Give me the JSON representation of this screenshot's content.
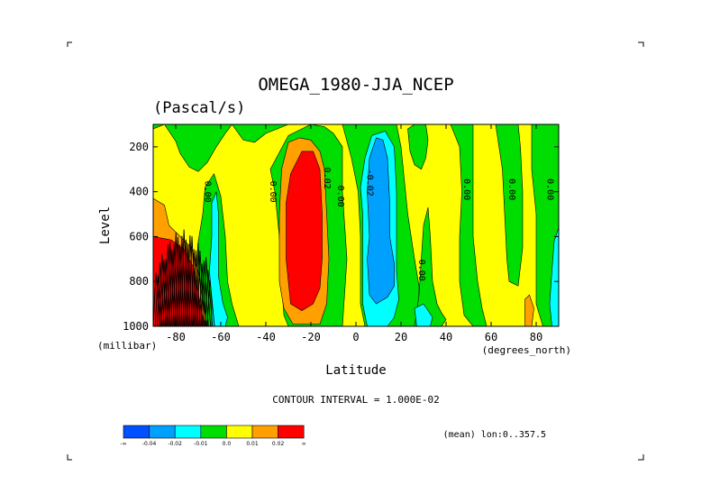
{
  "chart_data": {
    "type": "heatmap",
    "title": "OMEGA_1980-JJA_NCEP",
    "units": "(Pascal/s)",
    "xlabel": "Latitude",
    "ylabel": "Level",
    "x_units": "(degrees_north)",
    "y_units": "(millibar)",
    "xlim": [
      -90,
      90
    ],
    "ylim": [
      1000,
      100
    ],
    "x_ticks": [
      -80,
      -60,
      -40,
      -20,
      0,
      20,
      40,
      60,
      80
    ],
    "y_ticks": [
      200,
      400,
      600,
      800,
      1000
    ],
    "contour_interval_text": "CONTOUR INTERVAL = 1.000E-02",
    "mean_text": "(mean) lon:0..357.5",
    "contour_labels": [
      {
        "lat": -67,
        "level": 400,
        "text": "0.00"
      },
      {
        "lat": -38,
        "level": 400,
        "text": "0.00"
      },
      {
        "lat": -14,
        "level": 340,
        "text": "0.02"
      },
      {
        "lat": -8,
        "level": 420,
        "text": "0.00"
      },
      {
        "lat": 5,
        "level": 360,
        "text": "-0.02"
      },
      {
        "lat": 28,
        "level": 750,
        "text": "0.00"
      },
      {
        "lat": 48,
        "level": 390,
        "text": "0.00"
      },
      {
        "lat": 68,
        "level": 390,
        "text": "0.00"
      },
      {
        "lat": 85,
        "level": 390,
        "text": "0.00"
      }
    ],
    "regions": [
      {
        "fill": "orange",
        "poly": [
          [
            -90,
            430
          ],
          [
            -85,
            460
          ],
          [
            -83,
            550
          ],
          [
            -78,
            600
          ],
          [
            -73,
            650
          ],
          [
            -70,
            760
          ],
          [
            -68,
            880
          ],
          [
            -66,
            1000
          ],
          [
            -90,
            1000
          ]
        ]
      },
      {
        "fill": "red",
        "poly": [
          [
            -90,
            600
          ],
          [
            -82,
            615
          ],
          [
            -76,
            660
          ],
          [
            -72,
            740
          ],
          [
            -70,
            850
          ],
          [
            -68,
            960
          ],
          [
            -66,
            1000
          ],
          [
            -90,
            1000
          ]
        ]
      },
      {
        "fill": "green",
        "poly": [
          [
            -68,
            500
          ],
          [
            -67,
            380
          ],
          [
            -63,
            320
          ],
          [
            -60,
            420
          ],
          [
            -58,
            600
          ],
          [
            -57,
            800
          ],
          [
            -55,
            900
          ],
          [
            -52,
            1000
          ],
          [
            -66,
            1000
          ],
          [
            -68,
            880
          ],
          [
            -70,
            760
          ],
          [
            -70,
            620
          ]
        ]
      },
      {
        "fill": "cyan",
        "poly": [
          [
            -64,
            450
          ],
          [
            -62,
            400
          ],
          [
            -61,
            500
          ],
          [
            -61,
            620
          ],
          [
            -61,
            780
          ],
          [
            -59,
            900
          ],
          [
            -57,
            960
          ],
          [
            -58,
            1000
          ],
          [
            -64,
            1000
          ],
          [
            -64,
            900
          ],
          [
            -65,
            750
          ],
          [
            -64,
            600
          ]
        ]
      },
      {
        "fill": "green",
        "poly": [
          [
            -90,
            120
          ],
          [
            -85,
            100
          ],
          [
            -80,
            175
          ],
          [
            -78,
            230
          ],
          [
            -74,
            290
          ],
          [
            -70,
            310
          ],
          [
            -66,
            270
          ],
          [
            -62,
            200
          ],
          [
            -58,
            140
          ],
          [
            -55,
            100
          ],
          [
            -90,
            100
          ]
        ]
      },
      {
        "fill": "green",
        "poly": [
          [
            -55,
            100
          ],
          [
            -50,
            170
          ],
          [
            -45,
            180
          ],
          [
            -40,
            140
          ],
          [
            -35,
            120
          ],
          [
            -30,
            100
          ]
        ]
      },
      {
        "fill": "green",
        "poly": [
          [
            -38,
            300
          ],
          [
            -36,
            400
          ],
          [
            -34,
            600
          ],
          [
            -33,
            800
          ],
          [
            -32,
            950
          ],
          [
            -30,
            1000
          ],
          [
            -6,
            1000
          ],
          [
            -4,
            700
          ],
          [
            -6,
            400
          ],
          [
            -6,
            200
          ],
          [
            -10,
            140
          ],
          [
            -14,
            110
          ],
          [
            -20,
            100
          ],
          [
            -30,
            150
          ]
        ]
      },
      {
        "fill": "orange",
        "poly": [
          [
            -34,
            500
          ],
          [
            -33,
            300
          ],
          [
            -30,
            180
          ],
          [
            -25,
            160
          ],
          [
            -20,
            170
          ],
          [
            -16,
            220
          ],
          [
            -14,
            300
          ],
          [
            -13,
            500
          ],
          [
            -12,
            700
          ],
          [
            -13,
            900
          ],
          [
            -16,
            990
          ],
          [
            -28,
            990
          ],
          [
            -32,
            920
          ],
          [
            -34,
            800
          ],
          [
            -34,
            650
          ]
        ]
      },
      {
        "fill": "red",
        "poly": [
          [
            -29,
            900
          ],
          [
            -31,
            700
          ],
          [
            -31,
            450
          ],
          [
            -29,
            320
          ],
          [
            -24,
            220
          ],
          [
            -19,
            220
          ],
          [
            -16,
            300
          ],
          [
            -15,
            500
          ],
          [
            -15,
            700
          ],
          [
            -16,
            830
          ],
          [
            -19,
            900
          ],
          [
            -24,
            930
          ]
        ]
      },
      {
        "fill": "green",
        "poly": [
          [
            -6,
            100
          ],
          [
            -2,
            250
          ],
          [
            1,
            400
          ],
          [
            2,
            600
          ],
          [
            2,
            900
          ],
          [
            4,
            1000
          ],
          [
            26,
            1000
          ],
          [
            28,
            950
          ],
          [
            28,
            820
          ],
          [
            26,
            700
          ],
          [
            23,
            500
          ],
          [
            20,
            200
          ],
          [
            18,
            100
          ]
        ]
      },
      {
        "fill": "cyan",
        "poly": [
          [
            2,
            380
          ],
          [
            4,
            250
          ],
          [
            7,
            150
          ],
          [
            13,
            130
          ],
          [
            17,
            200
          ],
          [
            18,
            400
          ],
          [
            18,
            600
          ],
          [
            18,
            750
          ],
          [
            19,
            880
          ],
          [
            17,
            960
          ],
          [
            14,
            1000
          ],
          [
            5,
            1000
          ],
          [
            3,
            900
          ],
          [
            3,
            700
          ],
          [
            3,
            500
          ]
        ]
      },
      {
        "fill": "blue",
        "poly": [
          [
            5,
            400
          ],
          [
            6,
            250
          ],
          [
            9,
            160
          ],
          [
            12,
            170
          ],
          [
            14,
            250
          ],
          [
            15,
            450
          ],
          [
            15,
            600
          ],
          [
            17,
            720
          ],
          [
            17,
            820
          ],
          [
            14,
            870
          ],
          [
            9,
            900
          ],
          [
            6,
            860
          ],
          [
            5,
            700
          ],
          [
            6,
            600
          ]
        ]
      },
      {
        "fill": "green",
        "poly": [
          [
            23,
            120
          ],
          [
            26,
            100
          ],
          [
            31,
            100
          ],
          [
            32,
            170
          ],
          [
            31,
            250
          ],
          [
            29,
            300
          ],
          [
            26,
            280
          ],
          [
            24,
            220
          ]
        ]
      },
      {
        "fill": "green",
        "poly": [
          [
            30,
            550
          ],
          [
            32,
            470
          ],
          [
            33,
            600
          ],
          [
            34,
            800
          ],
          [
            36,
            900
          ],
          [
            38,
            940
          ],
          [
            40,
            970
          ],
          [
            38,
            1000
          ],
          [
            26,
            1000
          ],
          [
            28,
            860
          ],
          [
            29,
            700
          ]
        ]
      },
      {
        "fill": "cyan",
        "poly": [
          [
            26,
            920
          ],
          [
            30,
            900
          ],
          [
            34,
            960
          ],
          [
            33,
            1000
          ],
          [
            27,
            1000
          ]
        ]
      },
      {
        "fill": "green",
        "poly": [
          [
            42,
            100
          ],
          [
            46,
            200
          ],
          [
            47,
            400
          ],
          [
            46,
            600
          ],
          [
            46,
            800
          ],
          [
            48,
            950
          ],
          [
            52,
            1000
          ],
          [
            58,
            1000
          ],
          [
            56,
            920
          ],
          [
            54,
            800
          ],
          [
            52,
            600
          ],
          [
            52,
            400
          ],
          [
            52,
            100
          ]
        ]
      },
      {
        "fill": "green",
        "poly": [
          [
            62,
            100
          ],
          [
            65,
            300
          ],
          [
            66,
            500
          ],
          [
            67,
            700
          ],
          [
            68,
            800
          ],
          [
            72,
            820
          ],
          [
            74,
            650
          ],
          [
            74,
            400
          ],
          [
            73,
            200
          ],
          [
            72,
            100
          ]
        ]
      },
      {
        "fill": "green",
        "poly": [
          [
            78,
            100
          ],
          [
            78,
            300
          ],
          [
            80,
            500
          ],
          [
            80,
            700
          ],
          [
            80,
            900
          ],
          [
            83,
            1000
          ],
          [
            90,
            1000
          ],
          [
            90,
            100
          ]
        ]
      },
      {
        "fill": "orange",
        "poly": [
          [
            75,
            880
          ],
          [
            77,
            860
          ],
          [
            79,
            920
          ],
          [
            78,
            1000
          ],
          [
            75,
            1000
          ]
        ]
      },
      {
        "fill": "cyan",
        "poly": [
          [
            88,
            620
          ],
          [
            90,
            560
          ],
          [
            90,
            1000
          ],
          [
            87,
            1000
          ],
          [
            86,
            900
          ],
          [
            87,
            750
          ]
        ]
      }
    ],
    "black_band": {
      "lat_range": [
        -90,
        -66
      ],
      "level_range": [
        600,
        1000
      ]
    }
  },
  "colorbar": {
    "colors": [
      "#0050ff",
      "#00a0ff",
      "#00ffff",
      "#00dd00",
      "#ffff00",
      "#ffa000",
      "#ff0000"
    ],
    "labels": [
      "-∞",
      "-0.04",
      "-0.02",
      "-0.01",
      "0.0",
      "0.01",
      "0.02",
      "∞"
    ]
  },
  "palette": {
    "blue": "#00a0ff",
    "cyan": "#00ffff",
    "green": "#00dd00",
    "yellow": "#ffff00",
    "orange": "#ffa000",
    "red": "#ff0000"
  }
}
